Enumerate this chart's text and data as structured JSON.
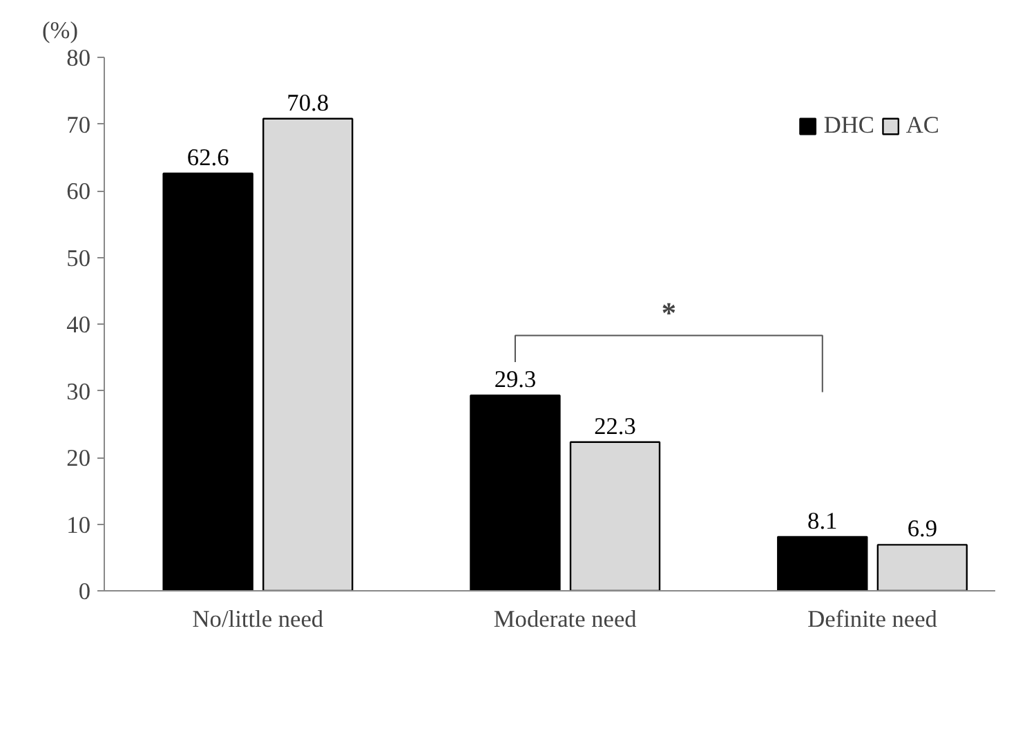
{
  "chart_data": {
    "type": "bar",
    "ylabel": "(%)",
    "categories": [
      "No/little need",
      "Moderate need",
      "Definite need"
    ],
    "series": [
      {
        "name": "DHC",
        "color": "#000000",
        "values": [
          62.6,
          29.3,
          8.1
        ]
      },
      {
        "name": "AC",
        "color": "#d9d9d9",
        "values": [
          70.8,
          22.3,
          6.9
        ]
      }
    ],
    "ylim": [
      0,
      80
    ],
    "yticks": [
      0,
      10,
      20,
      30,
      40,
      50,
      60,
      70,
      80
    ],
    "grid": false,
    "legend": "top right",
    "data_labels": true,
    "annotations": [
      "*"
    ]
  }
}
